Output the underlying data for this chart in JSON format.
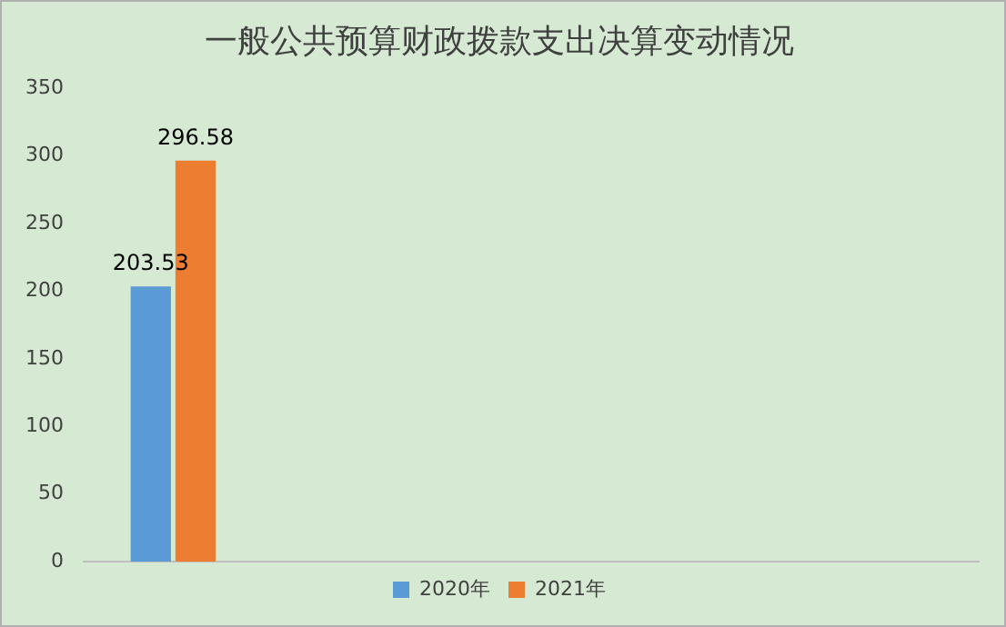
{
  "chart_data": {
    "type": "bar",
    "title": "一般公共预算财政拨款支出决算变动情况",
    "categories": [
      null,
      null,
      null,
      null,
      null
    ],
    "series": [
      {
        "name": "2020年",
        "color": "#5b9bd5",
        "values": [
          203.53,
          null,
          null,
          null,
          null
        ]
      },
      {
        "name": "2021年",
        "color": "#ed7d31",
        "values": [
          296.58,
          null,
          null,
          null,
          null
        ]
      }
    ],
    "ylim": [
      0,
      350
    ],
    "yticks": [
      0,
      50,
      100,
      150,
      200,
      250,
      300,
      350
    ],
    "grid": false,
    "legend": "bottom",
    "data_labels": true,
    "tick_labels": "y"
  }
}
